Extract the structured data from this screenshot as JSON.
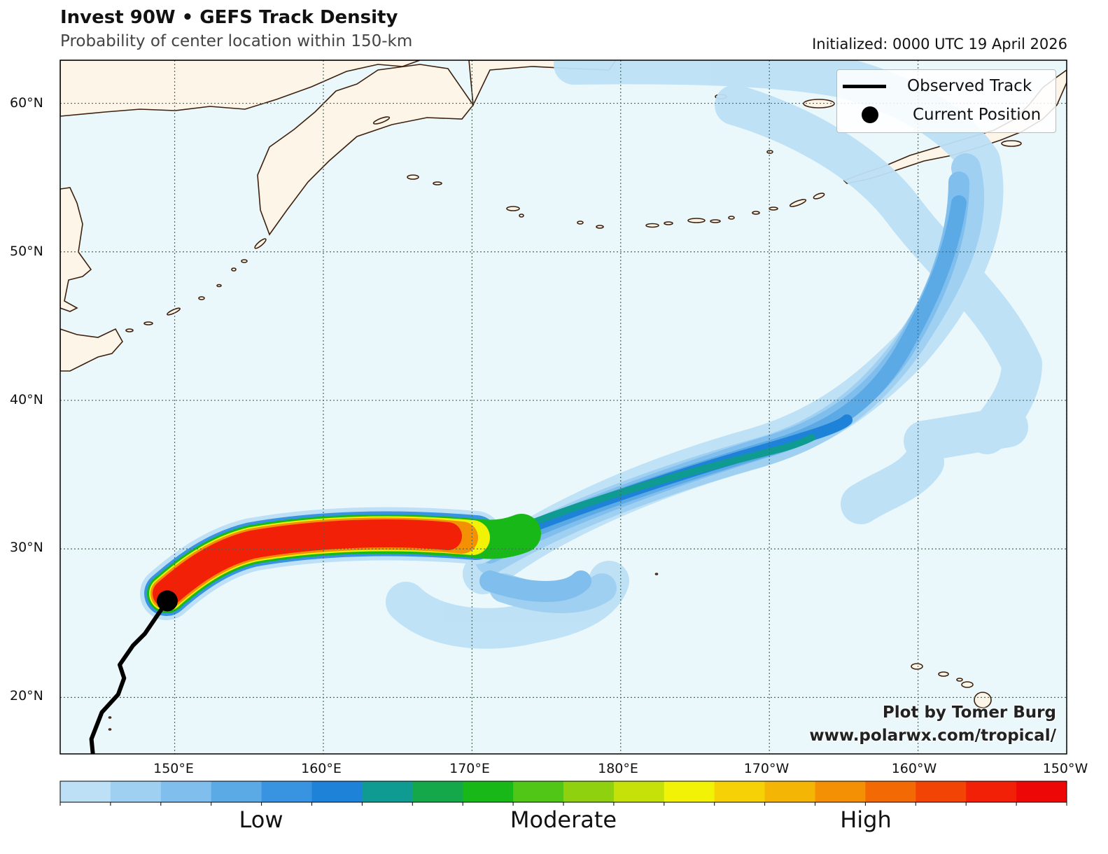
{
  "header": {
    "title": "Invest 90W • GEFS Track Density",
    "subtitle": "Probability of center location within 150-km",
    "initialized": "Initialized: 0000 UTC 19 April 2026"
  },
  "axes": {
    "lat_labels": [
      "60°N",
      "50°N",
      "40°N",
      "30°N",
      "20°N"
    ],
    "lon_labels": [
      "150°E",
      "160°E",
      "170°E",
      "180°E",
      "170°W",
      "160°W",
      "150°W"
    ]
  },
  "legend": {
    "observed_track": "Observed Track",
    "current_position": "Current Position"
  },
  "credit": {
    "line1": "Plot by Tomer Burg",
    "line2": "www.polarwx.com/tropical/"
  },
  "colorbar": {
    "low": "Low",
    "moderate": "Moderate",
    "high": "High",
    "colors": [
      "#bde0f6",
      "#9fd0f2",
      "#7fbeed",
      "#5ba9e5",
      "#3893e0",
      "#1d82d8",
      "#0f9a92",
      "#14a84a",
      "#19b819",
      "#52c617",
      "#8fd10f",
      "#c6e00a",
      "#f2f206",
      "#f5d106",
      "#f5b505",
      "#f49004",
      "#f36904",
      "#f24405",
      "#f12006",
      "#ee0707"
    ]
  },
  "colors": {
    "ocean": "#eaf8fc",
    "land": "#fcf5e8",
    "coast": "#3d200e",
    "grid": "#4a6a5a"
  },
  "chart_data": {
    "type": "map",
    "extent": {
      "lon": [
        142.3,
        210.0
      ],
      "lat": [
        16.2,
        62.9
      ]
    },
    "gridlines": {
      "lon": [
        150,
        160,
        170,
        180,
        190,
        200,
        210
      ],
      "lat": [
        20,
        30,
        40,
        50,
        60
      ]
    },
    "current_position": {
      "lon": 149.5,
      "lat": 26.5
    },
    "observed_track": [
      [
        144.5,
        16.2
      ],
      [
        144.4,
        17.2
      ],
      [
        145.1,
        19.0
      ],
      [
        146.2,
        20.2
      ],
      [
        146.6,
        21.3
      ],
      [
        146.3,
        22.2
      ],
      [
        147.2,
        23.5
      ],
      [
        148.0,
        24.3
      ],
      [
        149.5,
        26.5
      ]
    ]
  }
}
